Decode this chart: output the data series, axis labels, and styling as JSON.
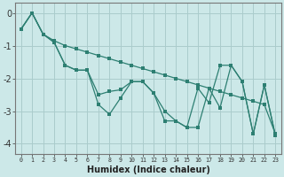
{
  "xlabel": "Humidex (Indice chaleur)",
  "background_color": "#cce8e8",
  "grid_color": "#aacccc",
  "line_color": "#2d7f72",
  "xlim": [
    -0.5,
    23.5
  ],
  "ylim": [
    -4.3,
    0.3
  ],
  "yticks": [
    0,
    -1,
    -2,
    -3,
    -4
  ],
  "xtick_labels": [
    "0",
    "1",
    "2",
    "3",
    "4",
    "5",
    "6",
    "7",
    "8",
    "9",
    "10",
    "11",
    "12",
    "13",
    "14",
    "15",
    "16",
    "17",
    "18",
    "19",
    "20",
    "21",
    "22",
    "23"
  ],
  "line_straight_x": [
    0,
    1,
    2,
    3,
    4,
    5,
    6,
    7,
    8,
    9,
    10,
    11,
    12,
    13,
    14,
    15,
    16,
    17,
    18,
    19,
    20,
    21,
    22,
    23
  ],
  "line_straight_y": [
    -0.5,
    0.0,
    -0.65,
    -0.85,
    -1.0,
    -1.1,
    -1.2,
    -1.3,
    -1.4,
    -1.5,
    -1.6,
    -1.7,
    -1.8,
    -1.9,
    -2.0,
    -2.1,
    -2.2,
    -2.3,
    -2.4,
    -2.5,
    -2.6,
    -2.7,
    -2.8,
    -3.7
  ],
  "line_mid_x": [
    0,
    1,
    2,
    3,
    4,
    5,
    6,
    7,
    8,
    9,
    10,
    11,
    12,
    13,
    14,
    15,
    16,
    17,
    18,
    19,
    20,
    21,
    22,
    23
  ],
  "line_mid_y": [
    -0.5,
    0.0,
    -0.65,
    -0.9,
    -1.6,
    -1.75,
    -1.75,
    -2.5,
    -2.4,
    -2.35,
    -2.1,
    -2.1,
    -2.45,
    -3.3,
    -3.3,
    -3.5,
    -2.3,
    -2.75,
    -1.6,
    -1.6,
    -2.1,
    -3.7,
    -2.2,
    -3.75
  ],
  "line_low_x": [
    0,
    1,
    2,
    3,
    4,
    5,
    6,
    7,
    8,
    9,
    10,
    11,
    12,
    13,
    14,
    15,
    16,
    17,
    18,
    19,
    20,
    21,
    22,
    23
  ],
  "line_low_y": [
    -0.5,
    0.0,
    -0.65,
    -0.9,
    -1.6,
    -1.75,
    -1.75,
    -2.8,
    -3.1,
    -2.6,
    -2.1,
    -2.1,
    -2.45,
    -3.0,
    -3.3,
    -3.5,
    -3.5,
    -2.3,
    -2.9,
    -1.6,
    -2.1,
    -3.7,
    -2.2,
    -3.75
  ]
}
